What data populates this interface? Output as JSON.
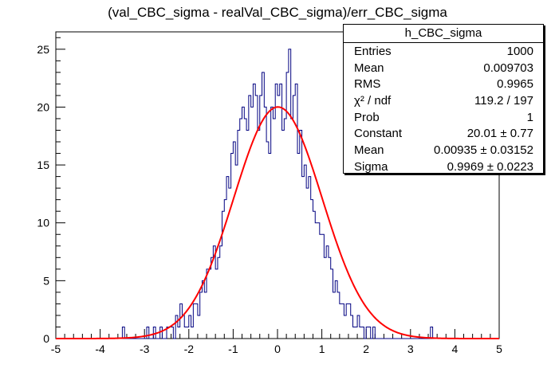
{
  "chart_data": {
    "type": "histogram",
    "title": "(val_CBC_sigma - realVal_CBC_sigma)/err_CBC_sigma",
    "xlim": [
      -5,
      5
    ],
    "ylim": [
      0,
      26.5
    ],
    "x_ticks": [
      -5,
      -4,
      -3,
      -2,
      -1,
      0,
      1,
      2,
      3,
      4,
      5
    ],
    "y_ticks": [
      0,
      5,
      10,
      15,
      20,
      25
    ],
    "bin_width": 0.05,
    "histogram": {
      "name": "h_CBC_sigma",
      "color": "#000080",
      "bins_start": -3.5,
      "values": [
        1,
        0,
        0,
        0,
        0,
        0,
        0,
        0,
        0,
        0,
        0,
        1,
        0,
        0,
        1,
        0,
        0,
        1,
        0,
        0,
        1,
        1,
        1,
        0,
        2,
        1,
        3,
        2,
        1,
        1,
        2,
        1,
        3,
        3,
        2,
        4,
        5,
        4,
        6,
        6,
        7,
        8,
        6,
        7,
        8,
        11,
        12,
        14,
        13,
        16,
        17,
        15,
        18,
        19,
        20,
        19,
        18,
        21,
        20,
        22,
        21,
        18,
        21,
        23,
        20,
        17,
        16,
        20,
        19,
        22,
        21,
        22,
        18,
        19,
        23,
        25,
        19,
        21,
        22,
        16,
        18,
        14,
        15,
        13,
        14,
        12,
        11,
        10,
        10,
        9,
        9,
        7,
        8,
        7,
        6,
        4,
        5,
        4,
        3,
        3,
        2,
        3,
        3,
        2,
        1,
        1,
        2,
        1,
        1,
        0,
        1,
        1,
        0,
        1,
        0,
        0,
        0,
        0,
        0,
        0,
        0,
        0,
        0,
        0,
        0,
        0,
        0,
        0,
        0,
        0,
        0,
        0,
        0,
        0,
        0,
        0,
        0,
        0,
        0,
        1
      ]
    },
    "fit": {
      "type": "gaussian",
      "color": "#ff0000",
      "constant": 20.01,
      "mean": 0.00935,
      "sigma": 0.9969
    }
  },
  "stats_box": {
    "title": "h_CBC_sigma",
    "rows": [
      {
        "label": "Entries",
        "value": "1000"
      },
      {
        "label": "Mean",
        "value": "0.009703"
      },
      {
        "label": "RMS",
        "value": "0.9965"
      },
      {
        "label": "χ² / ndf",
        "value": "119.2 / 197"
      },
      {
        "label": "Prob",
        "value": "1"
      },
      {
        "label": "Constant",
        "value": "20.01 ± 0.77"
      },
      {
        "label": "Mean",
        "value": "0.00935 ± 0.03152"
      },
      {
        "label": "Sigma",
        "value": "0.9969 ± 0.0223"
      }
    ]
  }
}
